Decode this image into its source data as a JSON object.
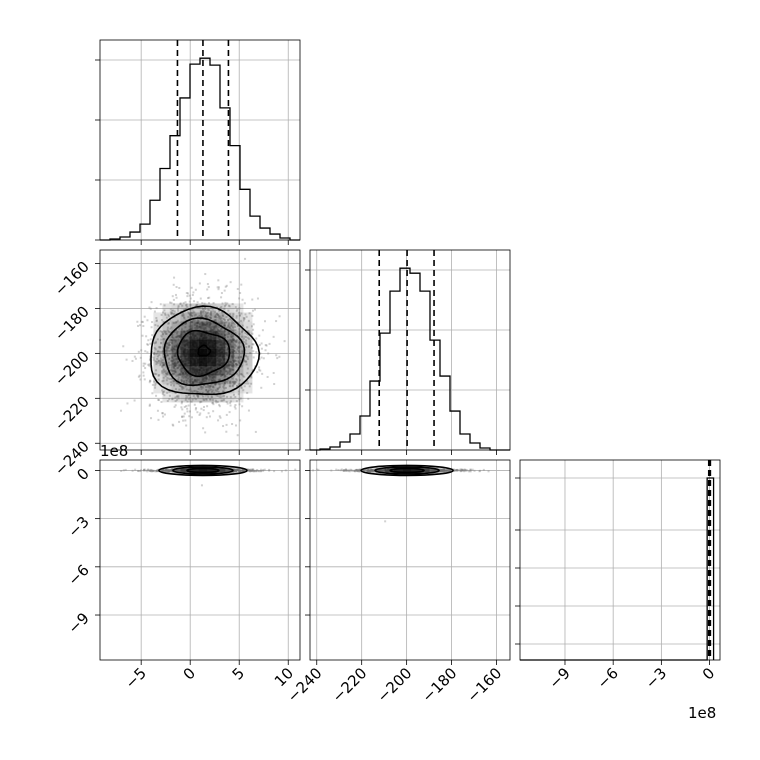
{
  "chart_data": {
    "type": "corner",
    "grid": true,
    "quantiles": [
      0.16,
      0.5,
      0.84
    ],
    "params": [
      {
        "center": 1.3,
        "sigma": 2.6,
        "lim": [
          -9.2,
          11.2
        ],
        "ticks": [
          -5,
          0,
          5,
          10
        ],
        "tick_labels": [
          "−5",
          "0",
          "5",
          "10"
        ]
      },
      {
        "center": -199.8,
        "sigma": 12.2,
        "lim": [
          -243,
          -154
        ],
        "ticks": [
          -240,
          -220,
          -200,
          -180,
          -160
        ],
        "tick_labels": [
          "−240",
          "−220",
          "−200",
          "−180",
          "−160"
        ]
      },
      {
        "center": 0,
        "lim": [
          -11.8,
          0.65
        ],
        "ticks": [
          -9,
          -6,
          -3,
          0
        ],
        "tick_labels": [
          "−9",
          "−6",
          "−3",
          "0"
        ],
        "offset_label": "1e8"
      }
    ],
    "hist_0": {
      "edges": [
        -9.2,
        -8.18,
        -7.16,
        -6.14,
        -5.12,
        -4.1,
        -3.08,
        -2.06,
        -1.04,
        -0.02,
        1.0,
        2.02,
        3.04,
        4.06,
        5.08,
        6.1,
        7.12,
        8.14,
        9.16,
        10.18,
        11.2
      ],
      "counts": [
        0,
        1,
        3,
        8,
        16,
        40,
        72,
        105,
        143,
        177,
        183,
        176,
        133,
        95,
        51,
        24,
        12,
        6,
        2,
        0
      ],
      "quantile_values": [
        -1.3,
        1.3,
        3.9
      ]
    },
    "hist_1": {
      "edges": [
        -243,
        -238.55,
        -234.1,
        -229.65,
        -225.2,
        -220.75,
        -216.3,
        -211.85,
        -207.4,
        -202.95,
        -198.5,
        -194.05,
        -189.6,
        -185.15,
        -180.7,
        -176.25,
        -171.8,
        -167.35,
        -162.9,
        -158.45,
        -154
      ],
      "counts": [
        0,
        1,
        3,
        8,
        16,
        34,
        69,
        117,
        159,
        182,
        177,
        159,
        110,
        74,
        39,
        16,
        7,
        2,
        0,
        0
      ],
      "quantile_values": [
        -212.2,
        -199.8,
        -187.8
      ]
    },
    "hist_2": {
      "bin": [
        -0.15,
        0.25
      ],
      "count": 1,
      "quantile_values": [
        -0.05,
        0,
        0.05
      ]
    },
    "outlier_points": [
      [
        1.2,
        -1.3
      ],
      [
        -210,
        -1.3
      ]
    ]
  }
}
